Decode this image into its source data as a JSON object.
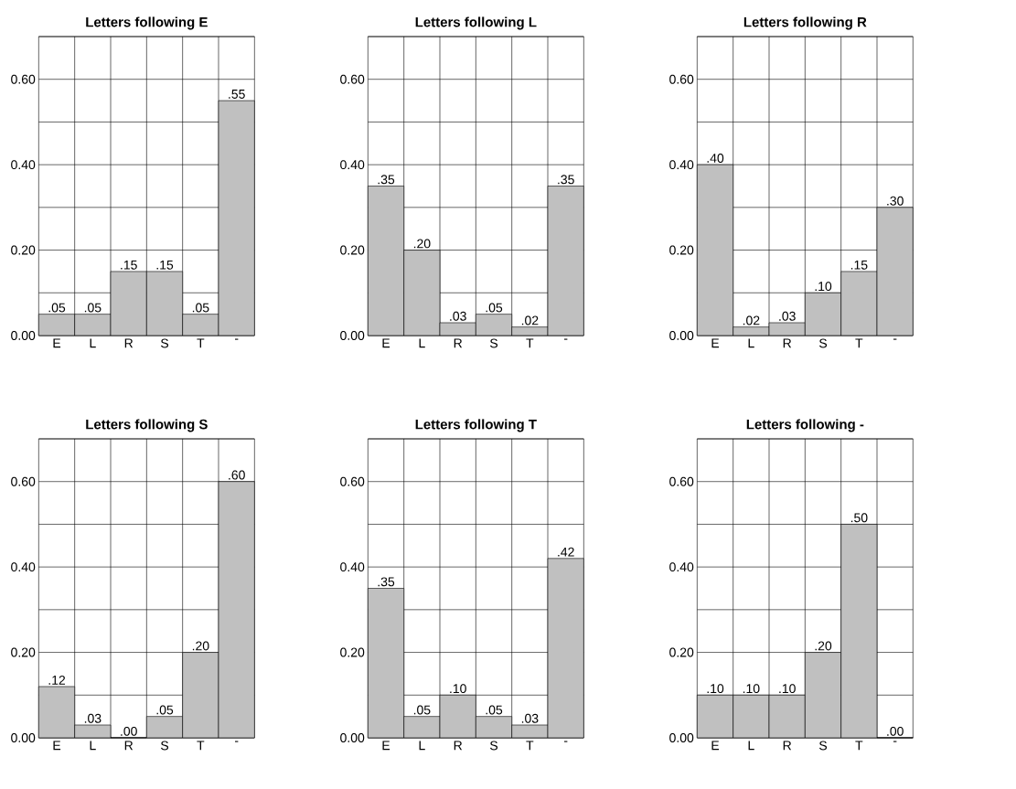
{
  "chart_data": [
    {
      "type": "bar",
      "title": "Letters following E",
      "categories": [
        "E",
        "L",
        "R",
        "S",
        "T",
        "-"
      ],
      "values": [
        0.05,
        0.05,
        0.15,
        0.15,
        0.05,
        0.55
      ],
      "value_labels": [
        ".05",
        ".05",
        ".15",
        ".15",
        ".05",
        ".55"
      ],
      "color": "#c0c0c0",
      "ylim": [
        0,
        0.7
      ],
      "yticks": [
        {
          "value": 0,
          "label": "0.00"
        },
        {
          "value": 0.1,
          "label": null
        },
        {
          "value": 0.2,
          "label": "0.20"
        },
        {
          "value": 0.3,
          "label": null
        },
        {
          "value": 0.4,
          "label": "0.40"
        },
        {
          "value": 0.5,
          "label": null
        },
        {
          "value": 0.6,
          "label": "0.60"
        },
        {
          "value": 0.7,
          "label": null
        }
      ],
      "grid": true
    },
    {
      "type": "bar",
      "title": "Letters following L",
      "categories": [
        "E",
        "L",
        "R",
        "S",
        "T",
        "-"
      ],
      "values": [
        0.35,
        0.2,
        0.03,
        0.05,
        0.02,
        0.35
      ],
      "value_labels": [
        ".35",
        ".20",
        ".03",
        ".05",
        ".02",
        ".35"
      ],
      "color": "#c0c0c0",
      "ylim": [
        0,
        0.7
      ],
      "yticks": [
        {
          "value": 0,
          "label": "0.00"
        },
        {
          "value": 0.1,
          "label": null
        },
        {
          "value": 0.2,
          "label": "0.20"
        },
        {
          "value": 0.3,
          "label": null
        },
        {
          "value": 0.4,
          "label": "0.40"
        },
        {
          "value": 0.5,
          "label": null
        },
        {
          "value": 0.6,
          "label": "0.60"
        },
        {
          "value": 0.7,
          "label": null
        }
      ],
      "grid": true
    },
    {
      "type": "bar",
      "title": "Letters following R",
      "categories": [
        "E",
        "L",
        "R",
        "S",
        "T",
        "-"
      ],
      "values": [
        0.4,
        0.02,
        0.03,
        0.1,
        0.15,
        0.3
      ],
      "value_labels": [
        ".40",
        ".02",
        ".03",
        ".10",
        ".15",
        ".30"
      ],
      "color": "#c0c0c0",
      "ylim": [
        0,
        0.7
      ],
      "yticks": [
        {
          "value": 0,
          "label": "0.00"
        },
        {
          "value": 0.1,
          "label": null
        },
        {
          "value": 0.2,
          "label": "0.20"
        },
        {
          "value": 0.3,
          "label": null
        },
        {
          "value": 0.4,
          "label": "0.40"
        },
        {
          "value": 0.5,
          "label": null
        },
        {
          "value": 0.6,
          "label": "0.60"
        },
        {
          "value": 0.7,
          "label": null
        }
      ],
      "grid": true
    },
    {
      "type": "bar",
      "title": "Letters following S",
      "categories": [
        "E",
        "L",
        "R",
        "S",
        "T",
        "-"
      ],
      "values": [
        0.12,
        0.03,
        0.0,
        0.05,
        0.2,
        0.6
      ],
      "value_labels": [
        ".12",
        ".03",
        ".00",
        ".05",
        ".20",
        ".60"
      ],
      "color": "#c0c0c0",
      "ylim": [
        0,
        0.7
      ],
      "yticks": [
        {
          "value": 0,
          "label": "0.00"
        },
        {
          "value": 0.1,
          "label": null
        },
        {
          "value": 0.2,
          "label": "0.20"
        },
        {
          "value": 0.3,
          "label": null
        },
        {
          "value": 0.4,
          "label": "0.40"
        },
        {
          "value": 0.5,
          "label": null
        },
        {
          "value": 0.6,
          "label": "0.60"
        },
        {
          "value": 0.7,
          "label": null
        }
      ],
      "grid": true
    },
    {
      "type": "bar",
      "title": "Letters following T",
      "categories": [
        "E",
        "L",
        "R",
        "S",
        "T",
        "-"
      ],
      "values": [
        0.35,
        0.05,
        0.1,
        0.05,
        0.03,
        0.42
      ],
      "value_labels": [
        ".35",
        ".05",
        ".10",
        ".05",
        ".03",
        ".42"
      ],
      "color": "#c0c0c0",
      "ylim": [
        0,
        0.7
      ],
      "yticks": [
        {
          "value": 0,
          "label": "0.00"
        },
        {
          "value": 0.1,
          "label": null
        },
        {
          "value": 0.2,
          "label": "0.20"
        },
        {
          "value": 0.3,
          "label": null
        },
        {
          "value": 0.4,
          "label": "0.40"
        },
        {
          "value": 0.5,
          "label": null
        },
        {
          "value": 0.6,
          "label": "0.60"
        },
        {
          "value": 0.7,
          "label": null
        }
      ],
      "grid": true
    },
    {
      "type": "bar",
      "title": "Letters following -",
      "categories": [
        "E",
        "L",
        "R",
        "S",
        "T",
        "-"
      ],
      "values": [
        0.1,
        0.1,
        0.1,
        0.2,
        0.5,
        0.0
      ],
      "value_labels": [
        ".10",
        ".10",
        ".10",
        ".20",
        ".50",
        ".00"
      ],
      "color": "#c0c0c0",
      "ylim": [
        0,
        0.7
      ],
      "yticks": [
        {
          "value": 0,
          "label": "0.00"
        },
        {
          "value": 0.1,
          "label": null
        },
        {
          "value": 0.2,
          "label": "0.20"
        },
        {
          "value": 0.3,
          "label": null
        },
        {
          "value": 0.4,
          "label": "0.40"
        },
        {
          "value": 0.5,
          "label": null
        },
        {
          "value": 0.6,
          "label": "0.60"
        },
        {
          "value": 0.7,
          "label": null
        }
      ],
      "grid": true
    }
  ]
}
